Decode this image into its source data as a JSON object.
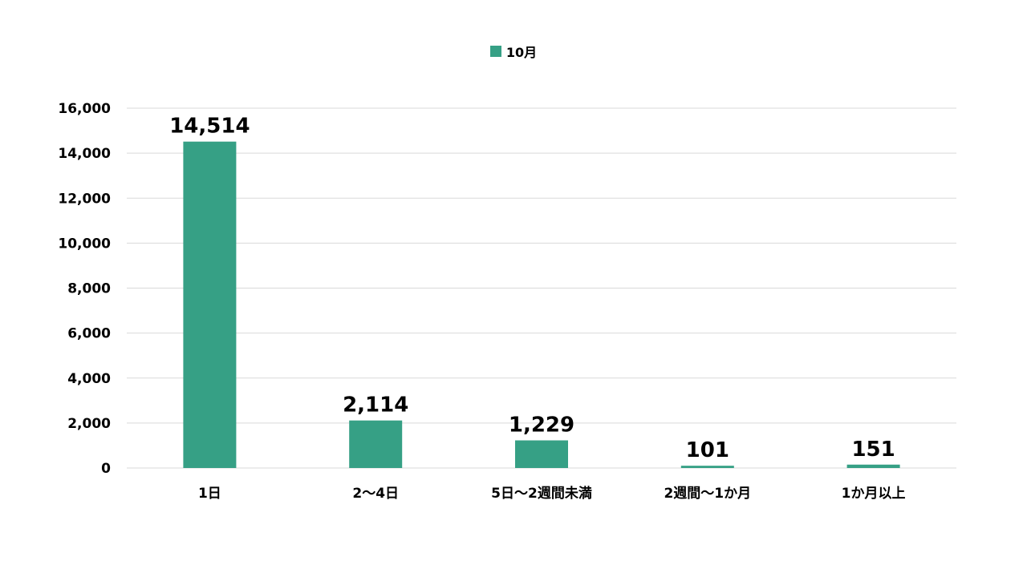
{
  "chart_data": {
    "type": "bar",
    "categories": [
      "1日",
      "2～4日",
      "5日～2週間未満",
      "2週間～1か月",
      "1か月以上"
    ],
    "series": [
      {
        "name": "10月",
        "values": [
          14514,
          2114,
          1229,
          101,
          151
        ],
        "color": "#36a085"
      }
    ],
    "data_labels": [
      "14,514",
      "2,114",
      "1,229",
      "101",
      "151"
    ],
    "ylim": [
      0,
      16000
    ],
    "yticks": [
      0,
      2000,
      4000,
      6000,
      8000,
      10000,
      12000,
      14000,
      16000
    ],
    "ytick_labels": [
      "0",
      "2,000",
      "4,000",
      "6,000",
      "8,000",
      "10,000",
      "12,000",
      "14,000",
      "16,000"
    ],
    "grid": true,
    "legend_position": "top-center",
    "gridline_color": "#d9d9d9"
  }
}
